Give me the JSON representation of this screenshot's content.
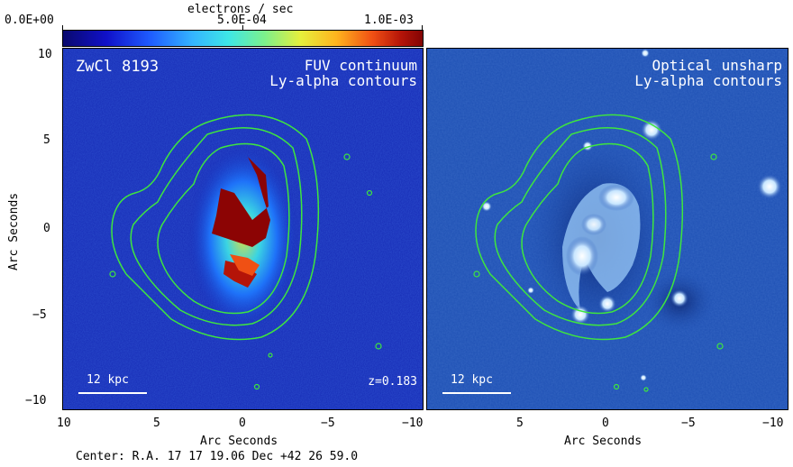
{
  "colorbar": {
    "title": "electrons / sec",
    "min_label": "0.0E+00",
    "mid_label": "5.0E-04",
    "max_label": "1.0E-03",
    "colormap": [
      "#0a0a6e",
      "#1010c8",
      "#1e5aff",
      "#34b4ff",
      "#3ee6e6",
      "#7cf08c",
      "#e6f03c",
      "#ffb41e",
      "#f05014",
      "#b41408",
      "#820404"
    ]
  },
  "left_panel": {
    "object_name": "ZwCl 8193",
    "title_line1": "FUV continuum",
    "title_line2": "Ly-alpha contours",
    "scale_label": "12 kpc",
    "redshift_label": "z=0.183"
  },
  "right_panel": {
    "title_line1": "Optical unsharp",
    "title_line2": "Ly-alpha contours",
    "scale_label": "12 kpc"
  },
  "y_axis": {
    "label": "Arc Seconds",
    "ticks": [
      "10",
      "5",
      "0",
      "−5",
      "−10"
    ]
  },
  "x_axis_left": {
    "label": "Arc Seconds",
    "ticks": [
      "10",
      "5",
      "0",
      "−5",
      "−10"
    ]
  },
  "x_axis_right": {
    "label": "Arc Seconds",
    "ticks": [
      "5",
      "0",
      "−5",
      "−10"
    ]
  },
  "footer": {
    "center_text": "Center:  R.A. 17 17 19.06    Dec  +42 26 59.0"
  },
  "colors": {
    "contour": "#3ee63e",
    "left_background": "#1428b4",
    "right_background": "#1e50b4",
    "overlay_text": "#ffffff"
  }
}
